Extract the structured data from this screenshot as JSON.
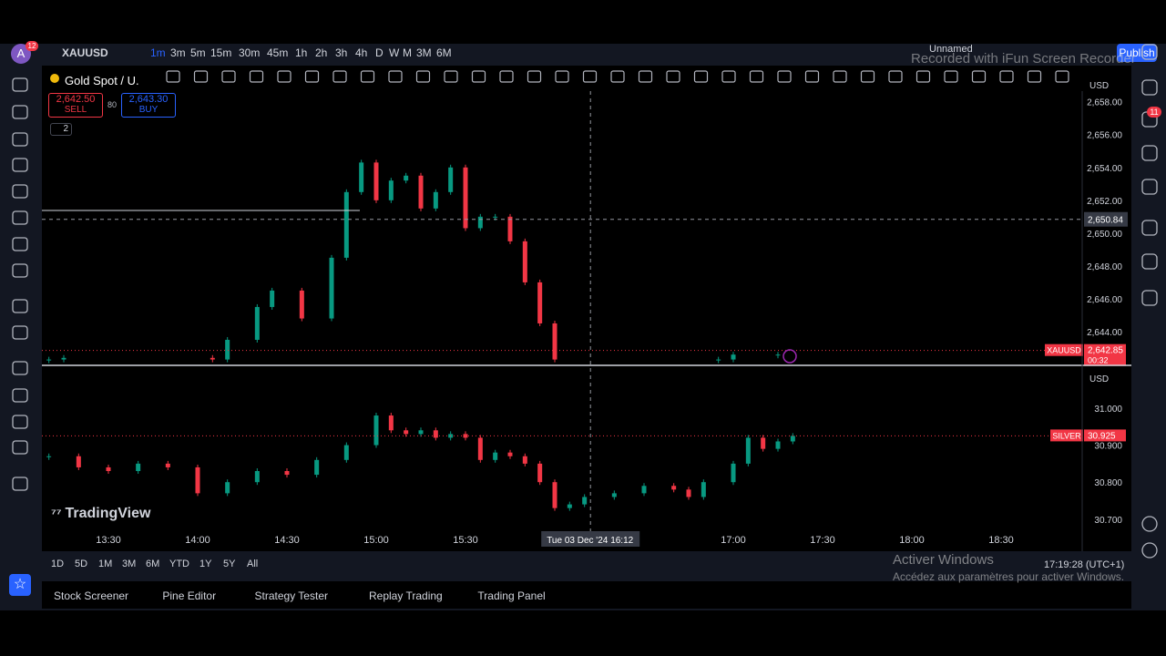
{
  "top_bar": {
    "avatar": "A",
    "avatar_badge": "12",
    "symbol": "XAUUSD",
    "timeframes": [
      "1m",
      "3m",
      "5m",
      "15m",
      "30m",
      "45m",
      "1h",
      "2h",
      "3h",
      "4h",
      "D",
      "W",
      "M",
      "3M",
      "6M"
    ],
    "layout_name": "Unnamed",
    "publish": "Publish"
  },
  "legend": {
    "title": "Gold Spot / U.",
    "sell_price": "2,642.50",
    "sell": "SELL",
    "spread": "80",
    "buy_price": "2,643.30",
    "buy": "BUY",
    "indicators": "2"
  },
  "currency": [
    "USD",
    "USD"
  ],
  "brand": "TradingView",
  "time_axis": {
    "ticks": [
      "13:30",
      "14:00",
      "14:30",
      "15:00",
      "15:30",
      "17:00",
      "17:30",
      "18:00",
      "18:30"
    ]
  },
  "crosshair": {
    "price": {
      "value": 2650.84,
      "label": "2,650.84"
    },
    "date": "Tue 03 Dec '24",
    "time": "16:12"
  },
  "chart_data": [
    {
      "type": "candlestick",
      "symbol": "XAUUSD",
      "up_color": "#089981",
      "down_color": "#f23645",
      "x": [
        "13:10",
        "13:15",
        "14:05",
        "14:10",
        "14:20",
        "14:25",
        "14:35",
        "14:45",
        "14:50",
        "14:55",
        "15:00",
        "15:05",
        "15:10",
        "15:15",
        "15:20",
        "15:25",
        "15:30",
        "15:35",
        "15:40",
        "15:45",
        "15:50",
        "15:55",
        "16:00",
        "16:55",
        "17:00",
        "17:15"
      ],
      "values": [
        2642.3,
        2642.4,
        2642.3,
        2643.5,
        2645.5,
        2646.5,
        2644.8,
        2648.5,
        2652.5,
        2654.3,
        2652,
        2653.2,
        2653.5,
        2651.5,
        2652.5,
        2654,
        2650.3,
        2651,
        2651,
        2649.5,
        2647,
        2644.5,
        2642.3,
        2642.3,
        2642.6,
        2642.6
      ],
      "ylim": [
        2642.0,
        2658.65
      ],
      "yticks": [
        {
          "value": 2644,
          "label": "2,644.00"
        },
        {
          "value": 2646,
          "label": "2,646.00"
        },
        {
          "value": 2648,
          "label": "2,648.00"
        },
        {
          "value": 2650,
          "label": "2,650.00"
        },
        {
          "value": 2652,
          "label": "2,652.00"
        },
        {
          "value": 2654,
          "label": "2,654.00"
        },
        {
          "value": 2656,
          "label": "2,656.00"
        },
        {
          "value": 2658,
          "label": "2,658.00"
        }
      ],
      "last_price": {
        "value": 2642.85,
        "label": "2,642.85"
      },
      "countdown": "00:32"
    },
    {
      "type": "candlestick",
      "symbol": "SILVER",
      "up_color": "#089981",
      "down_color": "#f23645",
      "x": [
        "13:10",
        "13:20",
        "13:30",
        "13:40",
        "13:50",
        "14:00",
        "14:10",
        "14:20",
        "14:30",
        "14:40",
        "14:50",
        "15:00",
        "15:05",
        "15:10",
        "15:15",
        "15:20",
        "15:25",
        "15:30",
        "15:35",
        "15:40",
        "15:45",
        "15:50",
        "15:55",
        "16:00",
        "16:05",
        "16:10",
        "16:20",
        "16:30",
        "16:40",
        "16:45",
        "16:50",
        "17:00",
        "17:05",
        "17:10",
        "17:15",
        "17:20"
      ],
      "values": [
        30.87,
        30.84,
        30.83,
        30.85,
        30.84,
        30.77,
        30.8,
        30.83,
        30.82,
        30.86,
        30.9,
        30.98,
        30.94,
        30.93,
        30.94,
        30.92,
        30.93,
        30.92,
        30.86,
        30.88,
        30.87,
        30.85,
        30.8,
        30.73,
        30.74,
        30.76,
        30.77,
        30.79,
        30.78,
        30.76,
        30.8,
        30.85,
        30.92,
        30.89,
        30.91,
        30.925
      ],
      "ylim": [
        30.675,
        31.113
      ],
      "yticks": [
        {
          "value": 30.7,
          "label": "30.700"
        },
        {
          "value": 30.8,
          "label": "30.800"
        },
        {
          "value": 30.9,
          "label": "30.900"
        },
        {
          "value": 31,
          "label": "31.000"
        }
      ],
      "last_price": 30.925
    }
  ],
  "ranges": [
    "1D",
    "5D",
    "1M",
    "3M",
    "6M",
    "YTD",
    "1Y",
    "5Y",
    "All"
  ],
  "clock": "17:19:28 (UTC+1)",
  "tabs": [
    "Stock Screener",
    "Pine Editor",
    "Strategy Tester",
    "Replay Trading",
    "Trading Panel"
  ],
  "sidebar_badge": "11",
  "watermark": "Recorded with iFun Screen Recorder",
  "activation": {
    "title": "Activer Windows",
    "subtitle": "Accédez aux paramètres pour activer Windows."
  }
}
